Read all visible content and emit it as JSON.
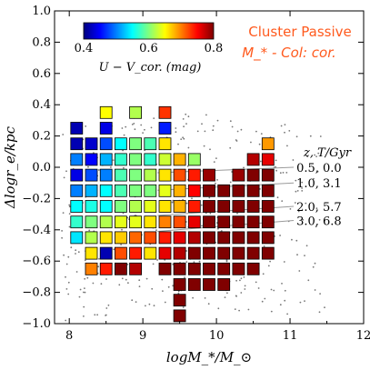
{
  "chart_data": {
    "type": "heatmap",
    "title": "Cluster Passive",
    "subtitle": "M_* - Col: cor.",
    "xlabel": "logM_*/M_⊙",
    "ylabel": "Δlogr_e/kpc",
    "xlim": [
      7.8,
      12.0
    ],
    "ylim": [
      -1.0,
      1.0
    ],
    "xticks": [
      "8",
      "9",
      "10",
      "11",
      "12"
    ],
    "yticks": [
      "1.0",
      "0.8",
      "0.6",
      "0.4",
      "0.2",
      "0.0",
      "−0.2",
      "−0.4",
      "−0.6",
      "−0.8",
      "−1.0"
    ],
    "colorbar": {
      "label": "U − V_cor. (mag)",
      "range": [
        0.4,
        0.8
      ],
      "ticks": [
        "0.4",
        "0.6",
        "0.8"
      ],
      "colormap": "jet",
      "placement": "top-left"
    },
    "grid": false,
    "tracks_header": "z, T/Gyr",
    "tracks": [
      {
        "label": "0.5, 0.0",
        "y_end": 0.0
      },
      {
        "label": "1.0, 3.1",
        "y_end": -0.1
      },
      {
        "label": "2.0, 5.7",
        "y_end": -0.25
      },
      {
        "label": "3.0, 6.8",
        "y_end": -0.34
      }
    ],
    "cells": [
      {
        "x": 8.5,
        "y": 0.35,
        "c": 0.65
      },
      {
        "x": 8.9,
        "y": 0.35,
        "c": 0.62
      },
      {
        "x": 9.3,
        "y": 0.35,
        "c": 0.73
      },
      {
        "x": 8.1,
        "y": 0.25,
        "c": 0.42
      },
      {
        "x": 8.5,
        "y": 0.25,
        "c": 0.44
      },
      {
        "x": 9.3,
        "y": 0.25,
        "c": 0.46
      },
      {
        "x": 8.1,
        "y": 0.15,
        "c": 0.42
      },
      {
        "x": 8.3,
        "y": 0.15,
        "c": 0.43
      },
      {
        "x": 8.5,
        "y": 0.15,
        "c": 0.48
      },
      {
        "x": 8.7,
        "y": 0.15,
        "c": 0.55
      },
      {
        "x": 8.9,
        "y": 0.15,
        "c": 0.6
      },
      {
        "x": 9.1,
        "y": 0.15,
        "c": 0.58
      },
      {
        "x": 9.3,
        "y": 0.15,
        "c": 0.66
      },
      {
        "x": 10.7,
        "y": 0.15,
        "c": 0.69
      },
      {
        "x": 8.1,
        "y": 0.05,
        "c": 0.5
      },
      {
        "x": 8.3,
        "y": 0.05,
        "c": 0.45
      },
      {
        "x": 8.5,
        "y": 0.05,
        "c": 0.52
      },
      {
        "x": 8.7,
        "y": 0.05,
        "c": 0.57
      },
      {
        "x": 8.9,
        "y": 0.05,
        "c": 0.6
      },
      {
        "x": 9.1,
        "y": 0.05,
        "c": 0.57
      },
      {
        "x": 9.3,
        "y": 0.05,
        "c": 0.63
      },
      {
        "x": 9.5,
        "y": 0.05,
        "c": 0.68
      },
      {
        "x": 9.7,
        "y": 0.05,
        "c": 0.61
      },
      {
        "x": 10.5,
        "y": 0.05,
        "c": 0.78
      },
      {
        "x": 10.7,
        "y": 0.05,
        "c": 0.76
      },
      {
        "x": 8.1,
        "y": -0.05,
        "c": 0.44
      },
      {
        "x": 8.3,
        "y": -0.05,
        "c": 0.48
      },
      {
        "x": 8.5,
        "y": -0.05,
        "c": 0.5
      },
      {
        "x": 8.7,
        "y": -0.05,
        "c": 0.58
      },
      {
        "x": 8.9,
        "y": -0.05,
        "c": 0.6
      },
      {
        "x": 9.1,
        "y": -0.05,
        "c": 0.62
      },
      {
        "x": 9.3,
        "y": -0.05,
        "c": 0.66
      },
      {
        "x": 9.5,
        "y": -0.05,
        "c": 0.72
      },
      {
        "x": 9.7,
        "y": -0.05,
        "c": 0.74
      },
      {
        "x": 9.9,
        "y": -0.05,
        "c": 0.79
      },
      {
        "x": 10.3,
        "y": -0.05,
        "c": 0.79
      },
      {
        "x": 10.5,
        "y": -0.05,
        "c": 0.8
      },
      {
        "x": 10.7,
        "y": -0.05,
        "c": 0.8
      },
      {
        "x": 8.1,
        "y": -0.15,
        "c": 0.5
      },
      {
        "x": 8.3,
        "y": -0.15,
        "c": 0.52
      },
      {
        "x": 8.5,
        "y": -0.15,
        "c": 0.55
      },
      {
        "x": 8.7,
        "y": -0.15,
        "c": 0.58
      },
      {
        "x": 8.9,
        "y": -0.15,
        "c": 0.6
      },
      {
        "x": 9.1,
        "y": -0.15,
        "c": 0.6
      },
      {
        "x": 9.3,
        "y": -0.15,
        "c": 0.64
      },
      {
        "x": 9.5,
        "y": -0.15,
        "c": 0.68
      },
      {
        "x": 9.7,
        "y": -0.15,
        "c": 0.75
      },
      {
        "x": 9.9,
        "y": -0.15,
        "c": 0.8
      },
      {
        "x": 10.1,
        "y": -0.15,
        "c": 0.8
      },
      {
        "x": 10.3,
        "y": -0.15,
        "c": 0.8
      },
      {
        "x": 10.5,
        "y": -0.15,
        "c": 0.8
      },
      {
        "x": 10.7,
        "y": -0.15,
        "c": 0.8
      },
      {
        "x": 8.1,
        "y": -0.25,
        "c": 0.55
      },
      {
        "x": 8.3,
        "y": -0.25,
        "c": 0.56
      },
      {
        "x": 8.5,
        "y": -0.25,
        "c": 0.55
      },
      {
        "x": 8.7,
        "y": -0.25,
        "c": 0.6
      },
      {
        "x": 8.9,
        "y": -0.25,
        "c": 0.62
      },
      {
        "x": 9.1,
        "y": -0.25,
        "c": 0.64
      },
      {
        "x": 9.3,
        "y": -0.25,
        "c": 0.66
      },
      {
        "x": 9.5,
        "y": -0.25,
        "c": 0.68
      },
      {
        "x": 9.7,
        "y": -0.25,
        "c": 0.74
      },
      {
        "x": 9.9,
        "y": -0.25,
        "c": 0.8
      },
      {
        "x": 10.1,
        "y": -0.25,
        "c": 0.8
      },
      {
        "x": 10.3,
        "y": -0.25,
        "c": 0.8
      },
      {
        "x": 10.5,
        "y": -0.25,
        "c": 0.8
      },
      {
        "x": 10.7,
        "y": -0.25,
        "c": 0.8
      },
      {
        "x": 8.1,
        "y": -0.35,
        "c": 0.57
      },
      {
        "x": 8.3,
        "y": -0.35,
        "c": 0.6
      },
      {
        "x": 8.5,
        "y": -0.35,
        "c": 0.62
      },
      {
        "x": 8.7,
        "y": -0.35,
        "c": 0.64
      },
      {
        "x": 8.9,
        "y": -0.35,
        "c": 0.64
      },
      {
        "x": 9.1,
        "y": -0.35,
        "c": 0.66
      },
      {
        "x": 9.3,
        "y": -0.35,
        "c": 0.7
      },
      {
        "x": 9.5,
        "y": -0.35,
        "c": 0.72
      },
      {
        "x": 9.7,
        "y": -0.35,
        "c": 0.76
      },
      {
        "x": 9.9,
        "y": -0.35,
        "c": 0.8
      },
      {
        "x": 10.1,
        "y": -0.35,
        "c": 0.8
      },
      {
        "x": 10.3,
        "y": -0.35,
        "c": 0.8
      },
      {
        "x": 10.5,
        "y": -0.35,
        "c": 0.8
      },
      {
        "x": 10.7,
        "y": -0.35,
        "c": 0.8
      },
      {
        "x": 8.1,
        "y": -0.45,
        "c": 0.54
      },
      {
        "x": 8.3,
        "y": -0.45,
        "c": 0.62
      },
      {
        "x": 8.5,
        "y": -0.45,
        "c": 0.66
      },
      {
        "x": 8.7,
        "y": -0.45,
        "c": 0.67
      },
      {
        "x": 8.9,
        "y": -0.45,
        "c": 0.71
      },
      {
        "x": 9.1,
        "y": -0.45,
        "c": 0.72
      },
      {
        "x": 9.3,
        "y": -0.45,
        "c": 0.74
      },
      {
        "x": 9.5,
        "y": -0.45,
        "c": 0.76
      },
      {
        "x": 9.7,
        "y": -0.45,
        "c": 0.78
      },
      {
        "x": 9.9,
        "y": -0.45,
        "c": 0.8
      },
      {
        "x": 10.1,
        "y": -0.45,
        "c": 0.8
      },
      {
        "x": 10.3,
        "y": -0.45,
        "c": 0.8
      },
      {
        "x": 10.5,
        "y": -0.45,
        "c": 0.8
      },
      {
        "x": 10.7,
        "y": -0.45,
        "c": 0.8
      },
      {
        "x": 8.3,
        "y": -0.55,
        "c": 0.66
      },
      {
        "x": 8.5,
        "y": -0.55,
        "c": 0.42
      },
      {
        "x": 8.7,
        "y": -0.55,
        "c": 0.72
      },
      {
        "x": 8.9,
        "y": -0.55,
        "c": 0.74
      },
      {
        "x": 9.1,
        "y": -0.55,
        "c": 0.66
      },
      {
        "x": 9.3,
        "y": -0.55,
        "c": 0.76
      },
      {
        "x": 9.5,
        "y": -0.55,
        "c": 0.78
      },
      {
        "x": 9.7,
        "y": -0.55,
        "c": 0.8
      },
      {
        "x": 9.9,
        "y": -0.55,
        "c": 0.8
      },
      {
        "x": 10.1,
        "y": -0.55,
        "c": 0.8
      },
      {
        "x": 10.3,
        "y": -0.55,
        "c": 0.8
      },
      {
        "x": 10.5,
        "y": -0.55,
        "c": 0.8
      },
      {
        "x": 10.7,
        "y": -0.55,
        "c": 0.8
      },
      {
        "x": 8.3,
        "y": -0.65,
        "c": 0.7
      },
      {
        "x": 8.5,
        "y": -0.65,
        "c": 0.74
      },
      {
        "x": 8.7,
        "y": -0.65,
        "c": 0.8
      },
      {
        "x": 8.9,
        "y": -0.65,
        "c": 0.78
      },
      {
        "x": 9.3,
        "y": -0.65,
        "c": 0.8
      },
      {
        "x": 9.5,
        "y": -0.65,
        "c": 0.8
      },
      {
        "x": 9.7,
        "y": -0.65,
        "c": 0.8
      },
      {
        "x": 9.9,
        "y": -0.65,
        "c": 0.8
      },
      {
        "x": 10.1,
        "y": -0.65,
        "c": 0.8
      },
      {
        "x": 10.3,
        "y": -0.65,
        "c": 0.8
      },
      {
        "x": 10.5,
        "y": -0.65,
        "c": 0.8
      },
      {
        "x": 9.5,
        "y": -0.75,
        "c": 0.8
      },
      {
        "x": 9.7,
        "y": -0.75,
        "c": 0.8
      },
      {
        "x": 9.9,
        "y": -0.75,
        "c": 0.8
      },
      {
        "x": 10.1,
        "y": -0.75,
        "c": 0.8
      },
      {
        "x": 9.5,
        "y": -0.85,
        "c": 0.8
      },
      {
        "x": 9.5,
        "y": -0.95,
        "c": 0.8
      }
    ]
  }
}
